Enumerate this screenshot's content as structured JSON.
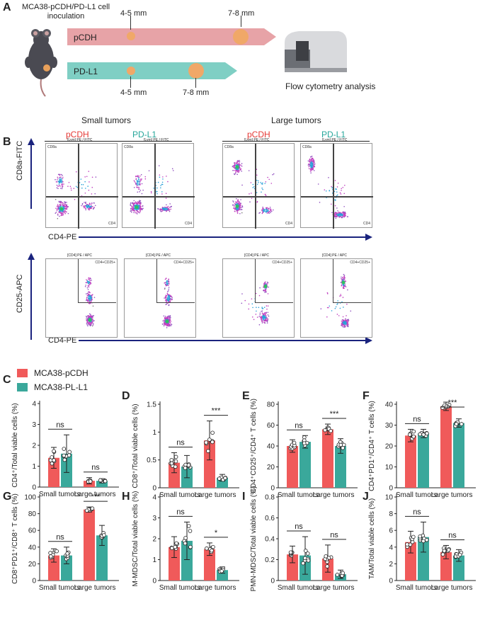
{
  "panelA": {
    "letter": "A",
    "inoculation": "MCA38-pCDH/PD-L1 cell inoculation",
    "rows": [
      {
        "name": "pCDH",
        "early": "4-5 mm",
        "late": "7-8 mm",
        "color": "#e7a3a7"
      },
      {
        "name": "PD-L1",
        "early": "4-5 mm",
        "late": "7-8 mm",
        "color": "#7fcfc4"
      }
    ],
    "analysis": "Flow cytometry analysis"
  },
  "panelB": {
    "letter": "B",
    "groups": [
      "Small tumors",
      "Large tumors"
    ],
    "conditions": [
      "pCDH",
      "PD-L1",
      "pCDH",
      "PD-L1"
    ],
    "condition_colors": [
      "#e53935",
      "#26a69a",
      "#e53935",
      "#26a69a"
    ],
    "row1": {
      "y_axis": "CD8a-FITC",
      "x_axis": "CD4-PE",
      "plot_title": "[Lym] PE / FITC",
      "q_tl": "CD8a",
      "q_br": "CD4"
    },
    "row2": {
      "y_axis": "CD25-APC",
      "x_axis": "CD4-PE",
      "plot_title": "[CD4] PE / APC",
      "q_tr": "CD4+CD25+"
    }
  },
  "legend": {
    "items": [
      {
        "label": "MCA38-pCDH",
        "color": "#f05a5a"
      },
      {
        "label": "MCA38-PL-L1",
        "color": "#3aa89b"
      }
    ]
  },
  "bar_panels": [
    {
      "letter": "C",
      "ylabel": "CD4⁺/Total viable cells (%)",
      "ylim": [
        0,
        4
      ],
      "ticks": [
        0,
        1,
        2,
        3,
        4
      ],
      "groups": [
        "Small tumors",
        "Large tumors"
      ],
      "values": [
        [
          1.4,
          1.6
        ],
        [
          0.3,
          0.3
        ]
      ],
      "errors": [
        [
          0.5,
          0.9
        ],
        [
          0.15,
          0.1
        ]
      ],
      "sig": [
        "ns",
        "ns"
      ]
    },
    {
      "letter": "D",
      "ylabel": "CD8⁺/Total viable cells (%)",
      "ylim": [
        0,
        1.5
      ],
      "ticks": [
        0.0,
        0.5,
        1.0,
        1.5
      ],
      "groups": [
        "Small tumors",
        "Large tumors"
      ],
      "values": [
        [
          0.45,
          0.38
        ],
        [
          0.85,
          0.18
        ]
      ],
      "errors": [
        [
          0.18,
          0.2
        ],
        [
          0.35,
          0.06
        ]
      ],
      "sig": [
        "ns",
        "***"
      ]
    },
    {
      "letter": "E",
      "ylabel": "CD4⁺CD25⁺/CD4⁺ T cells (%)",
      "ylim": [
        0,
        80
      ],
      "ticks": [
        0,
        20,
        40,
        60,
        80
      ],
      "groups": [
        "Small tumors",
        "Large tumors"
      ],
      "values": [
        [
          40,
          44
        ],
        [
          56,
          40
        ]
      ],
      "errors": [
        [
          6,
          6
        ],
        [
          5,
          7
        ]
      ],
      "sig": [
        "ns",
        "***"
      ]
    },
    {
      "letter": "F",
      "ylabel": "CD4⁺PD1⁺/CD4⁺ T cells (%)",
      "ylim": [
        0,
        40
      ],
      "ticks": [
        0,
        10,
        20,
        30,
        40
      ],
      "groups": [
        "Small tumors",
        "Large tumors"
      ],
      "values": [
        [
          25,
          26
        ],
        [
          39,
          31
        ]
      ],
      "errors": [
        [
          3,
          2
        ],
        [
          2,
          2
        ]
      ],
      "sig": [
        "ns",
        "***"
      ]
    },
    {
      "letter": "G",
      "ylabel": "CD8⁺PD1⁺/CD8⁺ T cells (%)",
      "ylim": [
        0,
        100
      ],
      "ticks": [
        0,
        20,
        40,
        60,
        80,
        100
      ],
      "groups": [
        "Small tumors",
        "Large tumors"
      ],
      "values": [
        [
          30,
          30
        ],
        [
          85,
          54
        ]
      ],
      "errors": [
        [
          8,
          10
        ],
        [
          3,
          12
        ]
      ],
      "sig": [
        "ns",
        "***"
      ]
    },
    {
      "letter": "H",
      "ylabel": "M-MDSC/Total viable cells (%)",
      "ylim": [
        0,
        4
      ],
      "ticks": [
        0,
        1,
        2,
        3,
        4
      ],
      "groups": [
        "Small tumors",
        "Large tumors"
      ],
      "values": [
        [
          1.6,
          1.9
        ],
        [
          1.5,
          0.5
        ]
      ],
      "errors": [
        [
          0.5,
          0.9
        ],
        [
          0.3,
          0.15
        ]
      ],
      "sig": [
        "ns",
        "*"
      ]
    },
    {
      "letter": "I",
      "ylabel": "PMN-MDSC/Total viable cells (%)",
      "ylim": [
        0,
        0.8
      ],
      "ticks": [
        0.0,
        0.2,
        0.4,
        0.6,
        0.8
      ],
      "groups": [
        "Small tumors",
        "Large tumors"
      ],
      "values": [
        [
          0.25,
          0.24
        ],
        [
          0.21,
          0.06
        ]
      ],
      "errors": [
        [
          0.08,
          0.18
        ],
        [
          0.13,
          0.04
        ]
      ],
      "sig": [
        "ns",
        "ns"
      ]
    },
    {
      "letter": "J",
      "ylabel": "TAM/Total viable cells (%)",
      "ylim": [
        0,
        10
      ],
      "ticks": [
        0,
        2,
        4,
        6,
        8,
        10
      ],
      "groups": [
        "Small tumors",
        "Large tumors"
      ],
      "values": [
        [
          4.6,
          5.2
        ],
        [
          3.4,
          3.0
        ]
      ],
      "errors": [
        [
          1.3,
          1.8
        ],
        [
          0.8,
          0.7
        ]
      ],
      "sig": [
        "ns",
        "ns"
      ]
    }
  ],
  "colors": {
    "red": "#f05a5a",
    "teal": "#3aa89b",
    "navy": "#1a237e"
  }
}
